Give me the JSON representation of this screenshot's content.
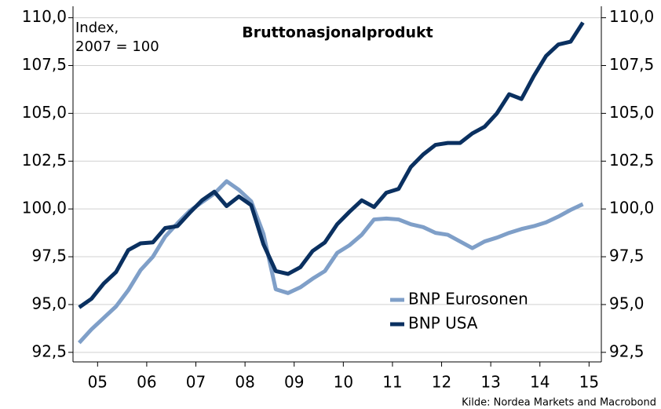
{
  "chart_data": {
    "type": "line",
    "title": "Bruttonasjonalprodukt",
    "annotations": [
      "Index,",
      "2007 = 100"
    ],
    "source": "Kilde: Nordea Markets and Macrobond",
    "x": [
      2005.125,
      2005.375,
      2005.625,
      2005.875,
      2006.125,
      2006.375,
      2006.625,
      2006.875,
      2007.125,
      2007.375,
      2007.625,
      2007.875,
      2008.125,
      2008.375,
      2008.625,
      2008.875,
      2009.125,
      2009.375,
      2009.625,
      2009.875,
      2010.125,
      2010.375,
      2010.625,
      2010.875,
      2011.125,
      2011.375,
      2011.625,
      2011.875,
      2012.125,
      2012.375,
      2012.625,
      2012.875,
      2013.125,
      2013.375,
      2013.625,
      2013.875,
      2014.125,
      2014.375,
      2014.625,
      2014.875,
      2015.125,
      2015.375
    ],
    "series": [
      {
        "name": "BNP Eurosonen",
        "color": "#7f9fc8",
        "values": [
          93.0,
          93.7,
          94.3,
          94.9,
          95.75,
          96.8,
          97.5,
          98.55,
          99.25,
          99.9,
          100.35,
          100.8,
          101.45,
          101.0,
          100.4,
          98.7,
          95.8,
          95.6,
          95.9,
          96.35,
          96.75,
          97.7,
          98.1,
          98.65,
          99.45,
          99.5,
          99.45,
          99.2,
          99.05,
          98.75,
          98.65,
          98.3,
          97.95,
          98.3,
          98.5,
          98.75,
          98.95,
          99.1,
          99.3,
          99.6,
          99.95,
          100.25
        ]
      },
      {
        "name": "BNP USA",
        "color": "#0a3060",
        "values": [
          94.85,
          95.3,
          96.1,
          96.7,
          97.85,
          98.2,
          98.25,
          99.0,
          99.1,
          99.8,
          100.45,
          100.9,
          100.15,
          100.65,
          100.2,
          98.15,
          96.75,
          96.6,
          96.95,
          97.8,
          98.25,
          99.2,
          99.85,
          100.45,
          100.1,
          100.85,
          101.05,
          102.2,
          102.85,
          103.35,
          103.45,
          103.45,
          103.95,
          104.3,
          105.0,
          106.0,
          105.75,
          106.95,
          108.0,
          108.6,
          108.75,
          109.75
        ]
      }
    ],
    "xlim": [
      2005,
      2015.75
    ],
    "xticks": [
      {
        "value": 2005.5,
        "label": "05"
      },
      {
        "value": 2006.5,
        "label": "06"
      },
      {
        "value": 2007.5,
        "label": "07"
      },
      {
        "value": 2008.5,
        "label": "08"
      },
      {
        "value": 2009.5,
        "label": "09"
      },
      {
        "value": 2010.5,
        "label": "10"
      },
      {
        "value": 2011.5,
        "label": "11"
      },
      {
        "value": 2012.5,
        "label": "12"
      },
      {
        "value": 2013.5,
        "label": "13"
      },
      {
        "value": 2014.5,
        "label": "14"
      },
      {
        "value": 2015.5,
        "label": "15"
      }
    ],
    "ylim": [
      92,
      110.6
    ],
    "yticks": [
      {
        "value": 92.5,
        "label": "92,5"
      },
      {
        "value": 95,
        "label": "95,0"
      },
      {
        "value": 97.5,
        "label": "97,5"
      },
      {
        "value": 100,
        "label": "100,0"
      },
      {
        "value": 102.5,
        "label": "102,5"
      },
      {
        "value": 105,
        "label": "105,0"
      },
      {
        "value": 107.5,
        "label": "107,5"
      },
      {
        "value": 110,
        "label": "110,0"
      }
    ],
    "y2lim": [
      92,
      110.6
    ],
    "y2ticks": [
      {
        "value": 92.5,
        "label": "92,5"
      },
      {
        "value": 95,
        "label": "95,0"
      },
      {
        "value": 97.5,
        "label": "97,5"
      },
      {
        "value": 100,
        "label": "100,0"
      },
      {
        "value": 102.5,
        "label": "102,5"
      },
      {
        "value": 105,
        "label": "105,0"
      },
      {
        "value": 107.5,
        "label": "107,5"
      },
      {
        "value": 110,
        "label": "110,0"
      }
    ],
    "grid": true,
    "legend": "lower right"
  }
}
